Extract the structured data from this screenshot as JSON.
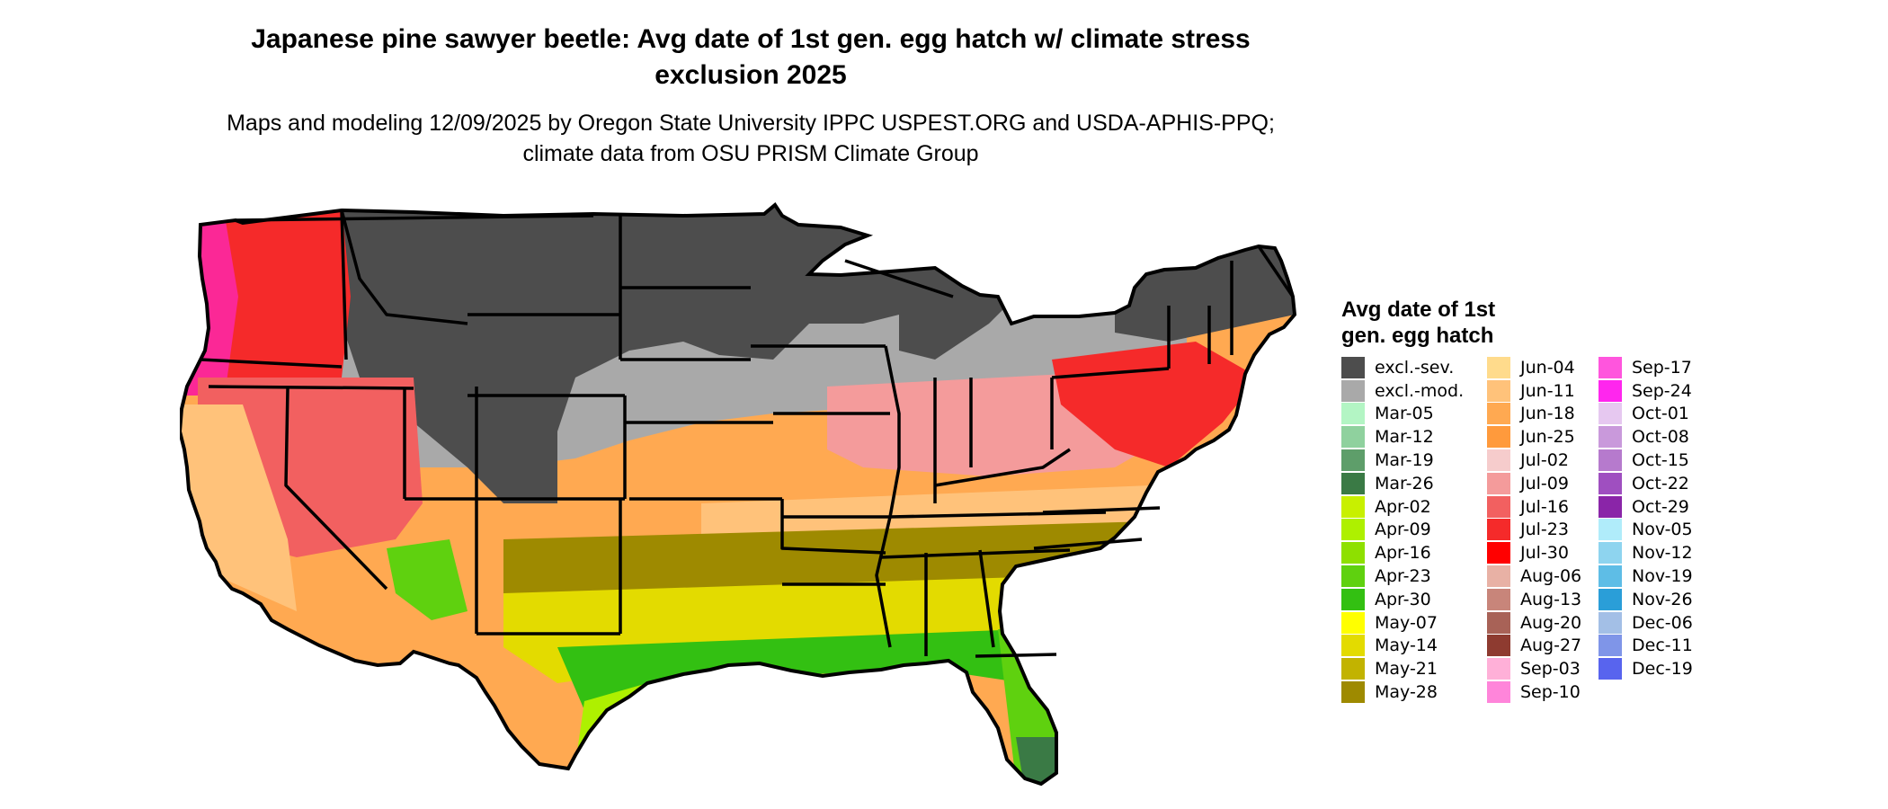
{
  "title": "Japanese pine sawyer beetle: Avg date of 1st gen. egg hatch w/ climate stress exclusion 2025",
  "subtitle": "Maps and modeling 12/09/2025 by Oregon State University IPPC USPEST.ORG and USDA-APHIS-PPQ; climate data from OSU PRISM Climate Group",
  "legend": {
    "title": "Avg date of 1st gen. egg hatch",
    "placement": "right",
    "columns": [
      [
        {
          "label": "excl.-sev.",
          "color": "#4d4d4d"
        },
        {
          "label": "excl.-mod.",
          "color": "#a9a9a9"
        },
        {
          "label": "Mar-05",
          "color": "#b3f5c4"
        },
        {
          "label": "Mar-12",
          "color": "#8fd19e"
        },
        {
          "label": "Mar-19",
          "color": "#5e9e6a"
        },
        {
          "label": "Mar-26",
          "color": "#3a7a45"
        },
        {
          "label": "Apr-02",
          "color": "#c8f000"
        },
        {
          "label": "Apr-09",
          "color": "#aef000"
        },
        {
          "label": "Apr-16",
          "color": "#8ee000"
        },
        {
          "label": "Apr-23",
          "color": "#5fd10f"
        },
        {
          "label": "Apr-30",
          "color": "#33c012"
        },
        {
          "label": "May-07",
          "color": "#ffff00"
        },
        {
          "label": "May-14",
          "color": "#e3db00"
        },
        {
          "label": "May-21",
          "color": "#c2b300"
        },
        {
          "label": "May-28",
          "color": "#9e8a00"
        }
      ],
      [
        {
          "label": "Jun-04",
          "color": "#ffdb8c"
        },
        {
          "label": "Jun-11",
          "color": "#ffc27a"
        },
        {
          "label": "Jun-18",
          "color": "#ffa951"
        },
        {
          "label": "Jun-25",
          "color": "#ff9a3c"
        },
        {
          "label": "Jul-02",
          "color": "#f6cccc"
        },
        {
          "label": "Jul-09",
          "color": "#f49b9b"
        },
        {
          "label": "Jul-16",
          "color": "#f26060"
        },
        {
          "label": "Jul-23",
          "color": "#f52a2a"
        },
        {
          "label": "Jul-30",
          "color": "#ff0000"
        },
        {
          "label": "Aug-06",
          "color": "#e8b1a5"
        },
        {
          "label": "Aug-13",
          "color": "#c8857a"
        },
        {
          "label": "Aug-20",
          "color": "#a86257"
        },
        {
          "label": "Aug-27",
          "color": "#8e3b30"
        },
        {
          "label": "Sep-03",
          "color": "#ffb0d8"
        },
        {
          "label": "Sep-10",
          "color": "#ff85da"
        }
      ],
      [
        {
          "label": "Sep-17",
          "color": "#ff55dd"
        },
        {
          "label": "Sep-24",
          "color": "#ff26ee"
        },
        {
          "label": "Oct-01",
          "color": "#e6c8f0"
        },
        {
          "label": "Oct-08",
          "color": "#c999db"
        },
        {
          "label": "Oct-15",
          "color": "#b67acd"
        },
        {
          "label": "Oct-22",
          "color": "#9f4fc0"
        },
        {
          "label": "Oct-29",
          "color": "#8a25a8"
        },
        {
          "label": "Nov-05",
          "color": "#b0ecfa"
        },
        {
          "label": "Nov-12",
          "color": "#8ed4ef"
        },
        {
          "label": "Nov-19",
          "color": "#5ebde6"
        },
        {
          "label": "Nov-26",
          "color": "#2a9ed8"
        },
        {
          "label": "Dec-06",
          "color": "#a3bfe6"
        },
        {
          "label": "Dec-11",
          "color": "#7f95e8"
        },
        {
          "label": "Dec-19",
          "color": "#5864ee"
        }
      ]
    ]
  },
  "map": {
    "region": "Contiguous United States",
    "state_border_color": "#000000",
    "regions": [
      {
        "name": "northern-plains-excluded",
        "category": "excl.-sev."
      },
      {
        "name": "northern-great-lakes-excluded",
        "category": "excl.-sev."
      },
      {
        "name": "northern-new-england-excluded",
        "category": "excl.-sev."
      },
      {
        "name": "central-rockies-excluded",
        "category": "excl.-sev."
      },
      {
        "name": "corn-belt-moderate-exclusion",
        "category": "excl.-mod."
      },
      {
        "name": "pacific-northwest",
        "category": "Jul-23"
      },
      {
        "name": "great-basin",
        "category": "Jul-16"
      },
      {
        "name": "california-central-valley",
        "category": "Jun-11"
      },
      {
        "name": "desert-southwest",
        "category": "Jun-18"
      },
      {
        "name": "southern-plains",
        "category": "Jun-18"
      },
      {
        "name": "ohio-valley",
        "category": "Jul-09"
      },
      {
        "name": "mid-atlantic-interior",
        "category": "Jul-23"
      },
      {
        "name": "tennessee-virginia-belt",
        "category": "Jun-11"
      },
      {
        "name": "texas-to-carolinas-band",
        "category": "May-28"
      },
      {
        "name": "deep-south",
        "category": "May-14"
      },
      {
        "name": "gulf-coast",
        "category": "Apr-30"
      },
      {
        "name": "southern-arizona",
        "category": "Apr-23"
      },
      {
        "name": "south-texas",
        "category": "Apr-09"
      },
      {
        "name": "south-florida",
        "category": "Mar-26"
      }
    ]
  }
}
